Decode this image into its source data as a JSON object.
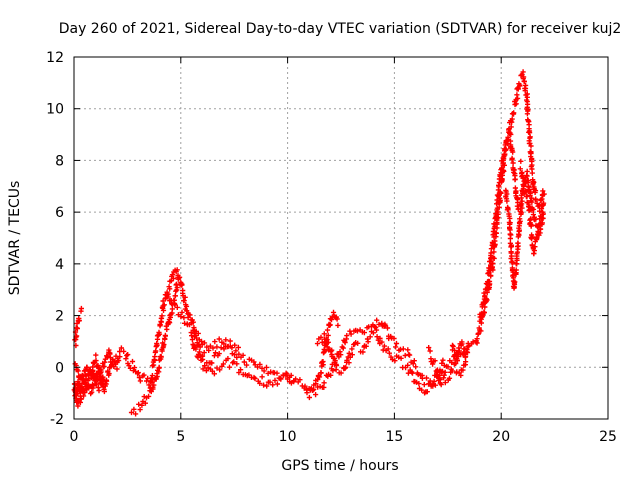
{
  "chart_data": {
    "type": "scatter",
    "title": "Day 260 of 2021, Sidereal Day-to-day VTEC variation (SDTVAR) for receiver kuj2",
    "xlabel": "GPS time / hours",
    "ylabel": "SDTVAR / TECUs",
    "xlim": [
      0,
      25
    ],
    "ylim": [
      -2,
      12
    ],
    "xticks": [
      0,
      5,
      10,
      15,
      20,
      25
    ],
    "yticks": [
      -2,
      0,
      2,
      4,
      6,
      8,
      10,
      12
    ],
    "grid": true,
    "marker": "+",
    "color": "#ff0000",
    "series": [
      {
        "name": "kuj2",
        "traces": [
          [
            [
              0.0,
              -0.5
            ],
            [
              0.1,
              -1.2
            ],
            [
              0.2,
              -0.4
            ],
            [
              0.3,
              -1.0
            ],
            [
              0.4,
              -0.3
            ],
            [
              0.6,
              -0.8
            ],
            [
              0.8,
              0.0
            ],
            [
              1.0,
              -0.6
            ],
            [
              1.2,
              -0.1
            ],
            [
              1.4,
              -0.9
            ],
            [
              1.6,
              -0.2
            ],
            [
              1.8,
              0.3
            ],
            [
              2.0,
              0.1
            ],
            [
              2.2,
              0.6
            ],
            [
              2.4,
              0.5
            ],
            [
              2.6,
              0.2
            ],
            [
              2.8,
              0.0
            ],
            [
              3.0,
              -0.3
            ],
            [
              3.2,
              -0.5
            ],
            [
              3.4,
              -0.4
            ],
            [
              3.6,
              -0.6
            ],
            [
              3.8,
              0.5
            ],
            [
              4.0,
              1.5
            ],
            [
              4.2,
              2.5
            ],
            [
              4.4,
              3.0
            ],
            [
              4.6,
              3.5
            ],
            [
              4.8,
              3.8
            ],
            [
              5.0,
              3.2
            ],
            [
              5.2,
              2.5
            ],
            [
              5.4,
              2.0
            ],
            [
              5.6,
              1.5
            ],
            [
              5.8,
              1.0
            ],
            [
              6.0,
              0.5
            ],
            [
              6.4,
              0.2
            ],
            [
              6.8,
              0.6
            ],
            [
              7.2,
              0.7
            ],
            [
              7.6,
              0.5
            ],
            [
              8.0,
              0.3
            ],
            [
              8.4,
              0.1
            ],
            [
              8.8,
              0.0
            ],
            [
              9.2,
              -0.2
            ],
            [
              9.6,
              -0.3
            ],
            [
              10.0,
              -0.4
            ],
            [
              10.4,
              -0.5
            ],
            [
              10.8,
              -0.7
            ],
            [
              11.2,
              -1.0
            ],
            [
              11.6,
              -0.7
            ],
            [
              12.0,
              -0.2
            ],
            [
              12.4,
              0.5
            ],
            [
              12.8,
              1.2
            ],
            [
              13.2,
              1.5
            ],
            [
              13.6,
              1.3
            ],
            [
              14.0,
              1.6
            ],
            [
              14.4,
              1.8
            ],
            [
              14.8,
              1.2
            ],
            [
              15.2,
              0.8
            ],
            [
              15.6,
              0.5
            ],
            [
              16.0,
              0.0
            ],
            [
              16.4,
              -0.5
            ],
            [
              16.8,
              -0.6
            ],
            [
              17.2,
              -0.3
            ],
            [
              17.6,
              0.2
            ],
            [
              18.0,
              0.5
            ],
            [
              18.4,
              0.6
            ],
            [
              18.8,
              0.9
            ],
            [
              19.0,
              1.5
            ],
            [
              19.2,
              2.2
            ],
            [
              19.4,
              3.0
            ],
            [
              19.6,
              4.0
            ],
            [
              19.8,
              5.5
            ],
            [
              20.0,
              7.0
            ],
            [
              20.2,
              8.5
            ],
            [
              20.4,
              9.3
            ],
            [
              20.6,
              10.0
            ],
            [
              20.8,
              10.8
            ],
            [
              21.0,
              11.3
            ],
            [
              21.2,
              10.5
            ],
            [
              21.4,
              8.0
            ],
            [
              21.6,
              6.5
            ],
            [
              21.8,
              6.2
            ],
            [
              22.0,
              6.9
            ]
          ],
          [
            [
              0.0,
              0.2
            ],
            [
              0.2,
              -0.2
            ],
            [
              0.4,
              -0.6
            ],
            [
              0.6,
              0.1
            ],
            [
              0.8,
              -0.4
            ],
            [
              1.0,
              0.3
            ],
            [
              1.2,
              -0.3
            ],
            [
              1.4,
              0.2
            ],
            [
              1.6,
              0.6
            ],
            [
              1.8,
              0.1
            ],
            [
              2.0,
              0.4
            ]
          ],
          [
            [
              0.0,
              -0.9
            ],
            [
              0.2,
              -1.5
            ],
            [
              0.4,
              -1.1
            ],
            [
              0.6,
              -0.5
            ],
            [
              0.8,
              -1.0
            ],
            [
              1.0,
              -0.4
            ],
            [
              1.2,
              -0.8
            ],
            [
              1.4,
              -0.2
            ]
          ],
          [
            [
              0.05,
              0.9
            ],
            [
              0.15,
              1.6
            ],
            [
              0.25,
              1.9
            ],
            [
              0.35,
              2.2
            ]
          ],
          [
            [
              2.7,
              -1.8
            ],
            [
              3.0,
              -1.6
            ],
            [
              3.3,
              -1.3
            ],
            [
              3.6,
              -0.9
            ],
            [
              3.9,
              -0.3
            ],
            [
              4.1,
              0.5
            ],
            [
              4.3,
              1.3
            ],
            [
              4.5,
              2.0
            ],
            [
              4.7,
              2.6
            ],
            [
              4.9,
              3.5
            ]
          ],
          [
            [
              4.3,
              2.8
            ],
            [
              4.6,
              2.4
            ],
            [
              4.9,
              2.1
            ],
            [
              5.2,
              1.8
            ],
            [
              5.5,
              1.5
            ],
            [
              5.8,
              1.2
            ],
            [
              6.1,
              0.9
            ],
            [
              6.4,
              0.7
            ],
            [
              6.7,
              0.9
            ],
            [
              7.0,
              1.0
            ],
            [
              7.4,
              0.8
            ],
            [
              7.8,
              0.6
            ]
          ],
          [
            [
              5.5,
              1.1
            ],
            [
              5.7,
              0.6
            ],
            [
              5.9,
              0.3
            ],
            [
              6.1,
              0.0
            ],
            [
              6.4,
              -0.2
            ],
            [
              6.8,
              -0.1
            ],
            [
              7.2,
              0.2
            ],
            [
              7.6,
              0.0
            ],
            [
              8.0,
              -0.3
            ],
            [
              8.4,
              -0.4
            ],
            [
              8.8,
              -0.5
            ],
            [
              9.2,
              -0.6
            ],
            [
              9.6,
              -0.5
            ],
            [
              10.0,
              -0.3
            ],
            [
              10.4,
              -0.6
            ]
          ],
          [
            [
              10.8,
              -0.9
            ],
            [
              11.0,
              -1.1
            ],
            [
              11.2,
              -0.8
            ],
            [
              11.4,
              -0.5
            ],
            [
              11.6,
              0.0
            ],
            [
              11.8,
              1.0
            ],
            [
              12.0,
              1.8
            ],
            [
              12.2,
              2.1
            ],
            [
              12.4,
              1.6
            ]
          ],
          [
            [
              11.4,
              0.9
            ],
            [
              11.7,
              1.2
            ],
            [
              12.0,
              0.6
            ],
            [
              12.3,
              0.0
            ],
            [
              12.6,
              -0.2
            ],
            [
              12.9,
              0.4
            ],
            [
              13.2,
              0.9
            ],
            [
              13.5,
              0.7
            ],
            [
              13.8,
              1.1
            ],
            [
              14.1,
              1.4
            ],
            [
              14.4,
              0.9
            ],
            [
              14.7,
              0.6
            ],
            [
              15.0,
              0.3
            ],
            [
              15.3,
              0.2
            ],
            [
              15.6,
              0.0
            ],
            [
              15.9,
              -0.4
            ],
            [
              16.2,
              -0.7
            ],
            [
              16.5,
              -0.9
            ],
            [
              16.8,
              -0.5
            ],
            [
              17.1,
              -0.1
            ],
            [
              17.4,
              0.3
            ]
          ],
          [
            [
              16.6,
              0.6
            ],
            [
              16.9,
              0.1
            ],
            [
              17.2,
              -0.6
            ],
            [
              17.5,
              -0.4
            ],
            [
              17.8,
              0.0
            ],
            [
              18.1,
              -0.3
            ],
            [
              18.4,
              0.2
            ]
          ],
          [
            [
              17.7,
              0.8
            ],
            [
              17.9,
              0.2
            ],
            [
              18.1,
              0.9
            ],
            [
              18.3,
              0.4
            ],
            [
              18.5,
              1.0
            ]
          ],
          [
            [
              19.0,
              1.8
            ],
            [
              19.2,
              2.7
            ],
            [
              19.4,
              3.5
            ],
            [
              19.6,
              4.8
            ],
            [
              19.8,
              6.2
            ],
            [
              20.0,
              7.6
            ],
            [
              20.2,
              8.6
            ],
            [
              20.4,
              9.0
            ],
            [
              20.6,
              7.5
            ],
            [
              20.8,
              6.0
            ]
          ],
          [
            [
              20.2,
              6.8
            ],
            [
              20.4,
              5.5
            ],
            [
              20.5,
              4.2
            ],
            [
              20.6,
              3.1
            ],
            [
              20.7,
              3.8
            ],
            [
              20.8,
              4.8
            ],
            [
              20.9,
              5.8
            ],
            [
              21.0,
              6.8
            ],
            [
              21.2,
              7.5
            ],
            [
              21.4,
              6.4
            ],
            [
              21.6,
              5.6
            ],
            [
              21.8,
              5.2
            ],
            [
              22.0,
              5.9
            ]
          ],
          [
            [
              20.9,
              7.8
            ],
            [
              21.1,
              6.9
            ],
            [
              21.3,
              6.2
            ],
            [
              21.5,
              4.5
            ],
            [
              21.7,
              5.1
            ],
            [
              21.9,
              6.0
            ],
            [
              22.0,
              6.6
            ]
          ]
        ]
      }
    ]
  }
}
